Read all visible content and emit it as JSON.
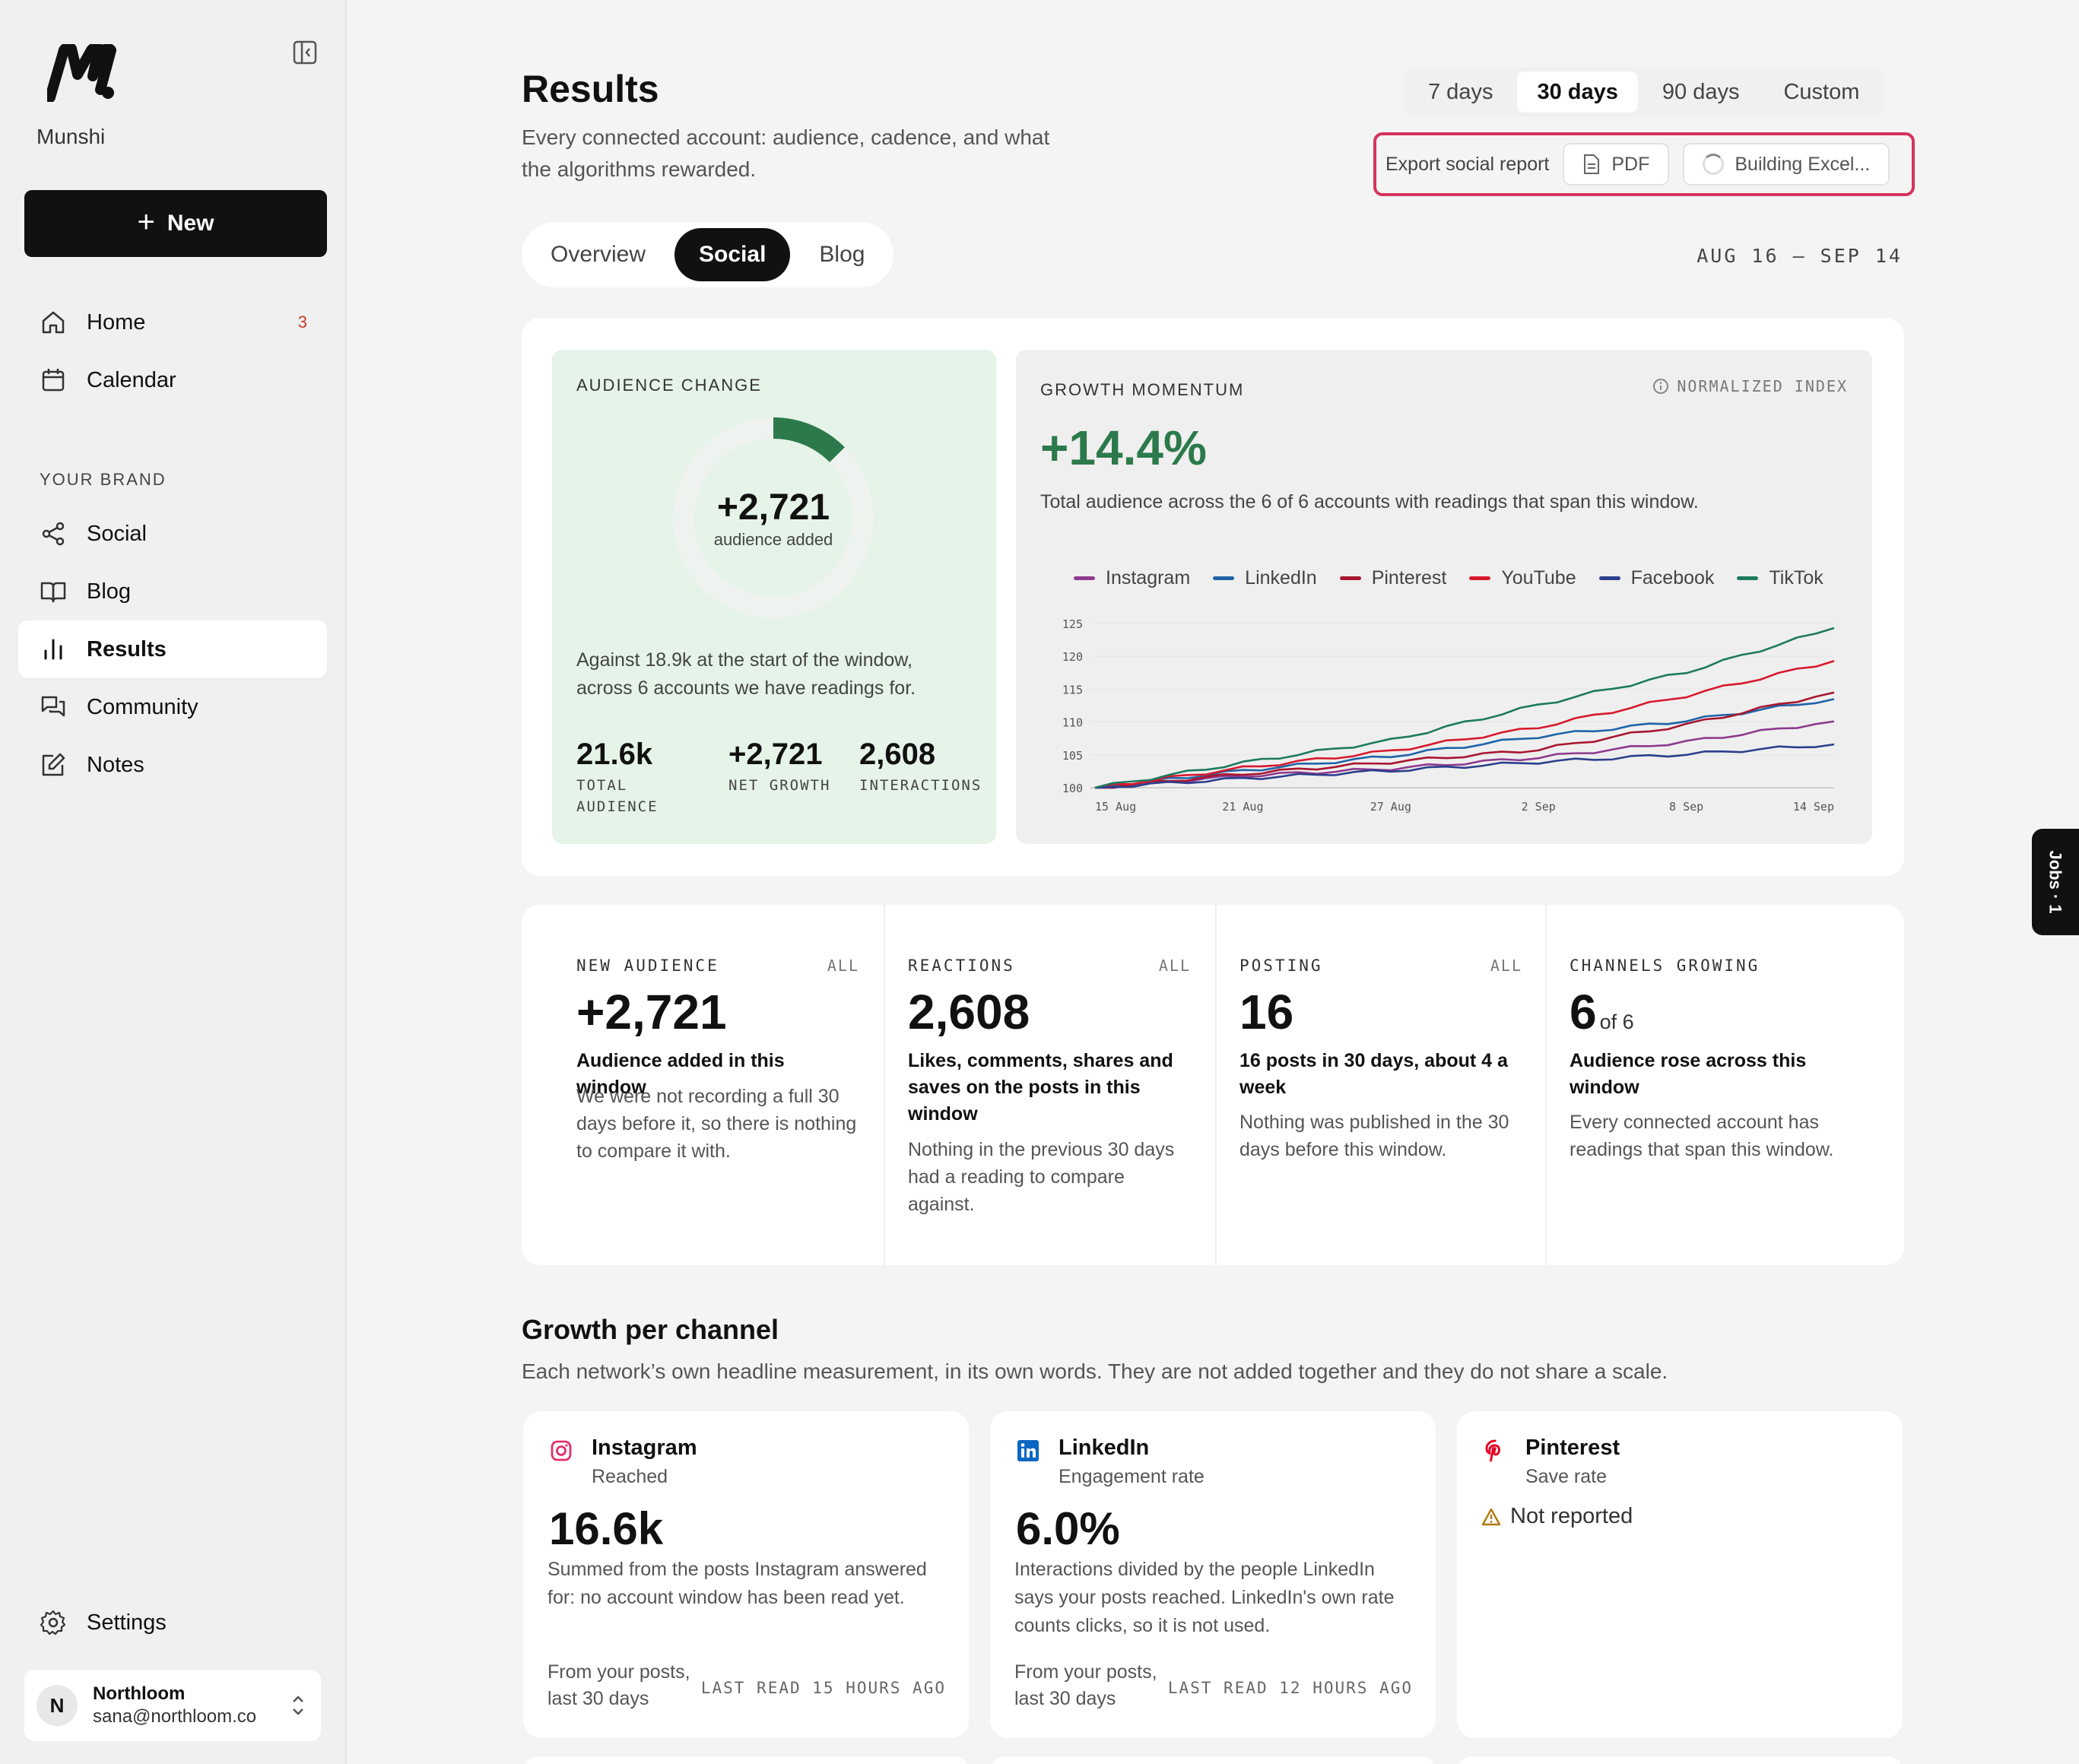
{
  "brand": {
    "name": "Munshi"
  },
  "sidebar": {
    "new_label": "New",
    "items": [
      {
        "label": "Home",
        "badge": "3",
        "icon": "home-icon"
      },
      {
        "label": "Calendar",
        "icon": "calendar-icon"
      },
      {
        "label": "Social",
        "icon": "share-icon"
      },
      {
        "label": "Blog",
        "icon": "book-icon"
      },
      {
        "label": "Results",
        "icon": "bar-chart-icon"
      },
      {
        "label": "Community",
        "icon": "chat-icon"
      },
      {
        "label": "Notes",
        "icon": "edit-icon"
      }
    ],
    "section_label": "YOUR BRAND",
    "settings_label": "Settings",
    "user": {
      "initial": "N",
      "name": "Northloom",
      "email": "sana@northloom.co"
    }
  },
  "header": {
    "title": "Results",
    "subtitle": "Every connected account: audience, cadence, and what the algorithms rewarded.",
    "ranges": [
      "7 days",
      "30 days",
      "90 days",
      "Custom"
    ],
    "active_range": "30 days",
    "export_label": "Export social report",
    "pdf_label": "PDF",
    "excel_label": "Building Excel..."
  },
  "tabs": {
    "items": [
      "Overview",
      "Social",
      "Blog"
    ],
    "active": "Social"
  },
  "date_range": "AUG 16 – SEP 14",
  "audience_change": {
    "label": "AUDIENCE CHANGE",
    "value": "+2,721",
    "caption": "audience added",
    "progress_fraction": 0.126,
    "description": "Against 18.9k at the start of the window, across 6 accounts we have readings for.",
    "stats": [
      {
        "value": "21.6k",
        "label": "TOTAL AUDIENCE"
      },
      {
        "value": "+2,721",
        "label": "NET GROWTH"
      },
      {
        "value": "2,608",
        "label": "INTERACTIONS"
      }
    ]
  },
  "growth_momentum": {
    "label": "GROWTH MOMENTUM",
    "index_label": "NORMALIZED INDEX",
    "value": "+14.4%",
    "description": "Total audience across the 6 of 6 accounts with readings that span this window."
  },
  "chart_data": {
    "type": "line",
    "x": [
      "15 Aug",
      "21 Aug",
      "27 Aug",
      "2 Sep",
      "8 Sep",
      "14 Sep"
    ],
    "ylim": [
      100,
      125
    ],
    "yticks": [
      100,
      105,
      110,
      115,
      120,
      125
    ],
    "series": [
      {
        "name": "Instagram",
        "color": "#8e3a8e",
        "values": [
          100,
          101.8,
          102.9,
          104.6,
          107.0,
          110.1
        ]
      },
      {
        "name": "LinkedIn",
        "color": "#1f63a8",
        "values": [
          100,
          102.6,
          104.8,
          107.8,
          110.2,
          113.5
        ]
      },
      {
        "name": "Pinterest",
        "color": "#a8162e",
        "values": [
          100,
          102.1,
          103.9,
          105.8,
          109.6,
          114.5
        ]
      },
      {
        "name": "YouTube",
        "color": "#d7192e",
        "values": [
          100,
          103.0,
          105.6,
          109.2,
          114.0,
          119.3
        ]
      },
      {
        "name": "Facebook",
        "color": "#2b3f8c",
        "values": [
          100,
          101.4,
          102.6,
          103.9,
          105.1,
          106.6
        ]
      },
      {
        "name": "TikTok",
        "color": "#1d7a5f",
        "values": [
          100,
          103.8,
          107.2,
          112.6,
          117.6,
          124.3
        ]
      }
    ]
  },
  "metrics": [
    {
      "head": "NEW AUDIENCE",
      "tag": "ALL",
      "value": "+2,721",
      "of": "",
      "title": "Audience added in this window",
      "note": "We were not recording a full 30 days before it, so there is nothing to compare it with."
    },
    {
      "head": "REACTIONS",
      "tag": "ALL",
      "value": "2,608",
      "of": "",
      "title": "Likes, comments, shares and saves on the posts in this window",
      "note": "Nothing in the previous 30 days had a reading to compare against."
    },
    {
      "head": "POSTING",
      "tag": "ALL",
      "value": "16",
      "of": "",
      "title": "16 posts in 30 days, about 4 a week",
      "note": "Nothing was published in the 30 days before this window."
    },
    {
      "head": "CHANNELS GROWING",
      "tag": "",
      "value": "6",
      "of": "of 6",
      "title": "Audience rose across this window",
      "note": "Every connected account has readings that span this window."
    }
  ],
  "growth_per_channel": {
    "title": "Growth per channel",
    "subtitle": "Each network’s own headline measurement, in its own words. They are not added together and they do not share a scale.",
    "channels": [
      {
        "name": "Instagram",
        "metric": "Reached",
        "value": "16.6k",
        "description": "Summed from the posts Instagram answered for: no account window has been read yet.",
        "footer": "From your posts, last 30 days",
        "last_read": "LAST READ 15 HOURS AGO",
        "color": "#e1306c"
      },
      {
        "name": "LinkedIn",
        "metric": "Engagement rate",
        "value": "6.0%",
        "description": "Interactions divided by the people LinkedIn says your posts reached. LinkedIn's own rate counts clicks, so it is not used.",
        "footer": "From your posts, last 30 days",
        "last_read": "LAST READ 12 HOURS AGO",
        "color": "#0a66c2"
      },
      {
        "name": "Pinterest",
        "metric": "Save rate",
        "status": "Not reported",
        "color": "#e60023"
      }
    ]
  },
  "jobs_tab": "Jobs · 1"
}
